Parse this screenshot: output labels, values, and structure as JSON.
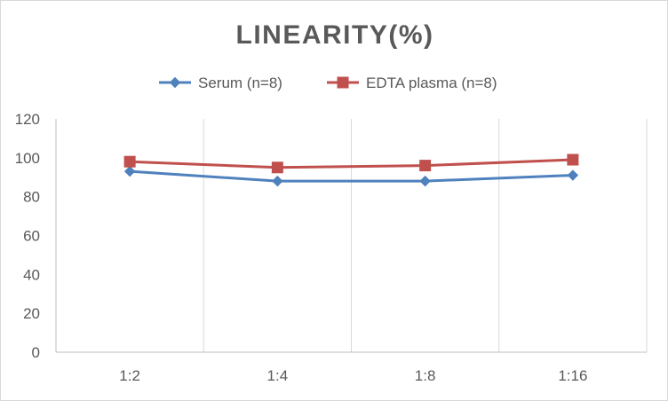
{
  "chart_data": {
    "type": "line",
    "title": "LINEARITY(%)",
    "xlabel": "",
    "ylabel": "",
    "categories": [
      "1:2",
      "1:4",
      "1:8",
      "1:16"
    ],
    "ylim": [
      0,
      120
    ],
    "yticks": [
      0,
      20,
      40,
      60,
      80,
      100,
      120
    ],
    "grid": "vertical",
    "legend_position": "top",
    "series": [
      {
        "name": "Serum (n=8)",
        "values": [
          93,
          88,
          88,
          91
        ],
        "color": "#4f81bd",
        "marker": "diamond"
      },
      {
        "name": "EDTA plasma (n=8)",
        "values": [
          98,
          95,
          96,
          99
        ],
        "color": "#c0504d",
        "marker": "square"
      }
    ]
  }
}
